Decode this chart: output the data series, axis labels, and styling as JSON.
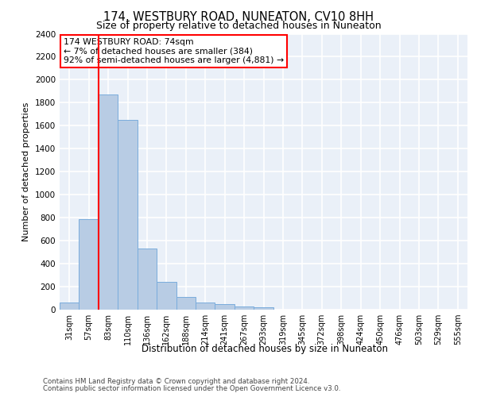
{
  "title": "174, WESTBURY ROAD, NUNEATON, CV10 8HH",
  "subtitle": "Size of property relative to detached houses in Nuneaton",
  "xlabel": "Distribution of detached houses by size in Nuneaton",
  "ylabel": "Number of detached properties",
  "categories": [
    "31sqm",
    "57sqm",
    "83sqm",
    "110sqm",
    "136sqm",
    "162sqm",
    "188sqm",
    "214sqm",
    "241sqm",
    "267sqm",
    "293sqm",
    "319sqm",
    "345sqm",
    "372sqm",
    "398sqm",
    "424sqm",
    "450sqm",
    "476sqm",
    "503sqm",
    "529sqm",
    "555sqm"
  ],
  "values": [
    60,
    790,
    1870,
    1650,
    530,
    240,
    110,
    60,
    45,
    25,
    20,
    0,
    0,
    0,
    0,
    0,
    0,
    0,
    0,
    0,
    0
  ],
  "bar_color": "#b8cce4",
  "bar_edge_color": "#7aacdc",
  "background_color": "#eaf0f8",
  "grid_color": "#ffffff",
  "vline_x": 1.5,
  "vline_color": "red",
  "annotation_text": "174 WESTBURY ROAD: 74sqm\n← 7% of detached houses are smaller (384)\n92% of semi-detached houses are larger (4,881) →",
  "annotation_box_color": "red",
  "ylim": [
    0,
    2400
  ],
  "yticks": [
    0,
    200,
    400,
    600,
    800,
    1000,
    1200,
    1400,
    1600,
    1800,
    2000,
    2200,
    2400
  ],
  "footer_line1": "Contains HM Land Registry data © Crown copyright and database right 2024.",
  "footer_line2": "Contains public sector information licensed under the Open Government Licence v3.0."
}
